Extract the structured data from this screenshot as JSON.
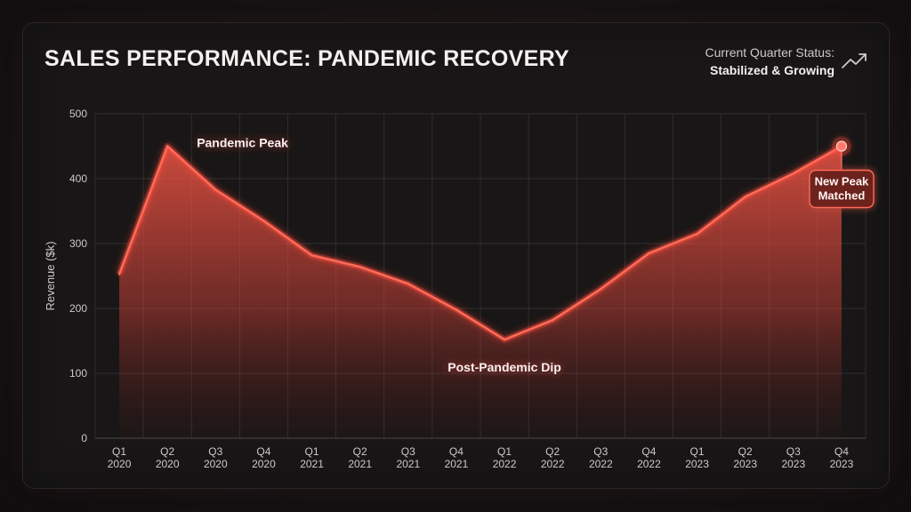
{
  "header": {
    "title": "SALES PERFORMANCE: PANDEMIC RECOVERY",
    "status_label": "Current Quarter Status:",
    "status_value": "Stabilized & Growing",
    "status_icon": "trending-up-icon"
  },
  "colors": {
    "accent": "#ff5a4a",
    "line": "#ff6a58",
    "text": "#f4f0ef",
    "muted": "#cfc9c8",
    "grid": "#4a4444"
  },
  "chart_data": {
    "type": "area",
    "title": "SALES PERFORMANCE: PANDEMIC RECOVERY",
    "xlabel": "",
    "ylabel": "Revenue ($k)",
    "ylim": [
      0,
      500
    ],
    "yticks": [
      0,
      100,
      200,
      300,
      400,
      500
    ],
    "grid": true,
    "categories": [
      [
        "Q1",
        "2020"
      ],
      [
        "Q2",
        "2020"
      ],
      [
        "Q3",
        "2020"
      ],
      [
        "Q4",
        "2020"
      ],
      [
        "Q1",
        "2021"
      ],
      [
        "Q2",
        "2021"
      ],
      [
        "Q3",
        "2021"
      ],
      [
        "Q4",
        "2021"
      ],
      [
        "Q1",
        "2022"
      ],
      [
        "Q2",
        "2022"
      ],
      [
        "Q3",
        "2022"
      ],
      [
        "Q4",
        "2022"
      ],
      [
        "Q1",
        "2023"
      ],
      [
        "Q2",
        "2023"
      ],
      [
        "Q3",
        "2023"
      ],
      [
        "Q4",
        "2023"
      ]
    ],
    "series": [
      {
        "name": "Revenue",
        "values": [
          253,
          450,
          383,
          335,
          282,
          264,
          238,
          198,
          152,
          182,
          230,
          285,
          315,
          372,
          408,
          450
        ]
      }
    ],
    "annotations": [
      {
        "text": "Pandemic Peak",
        "index": 1,
        "value": 450,
        "style": "label",
        "placement": "upper-right"
      },
      {
        "text": "Post-Pandemic Dip",
        "index": 8,
        "value": 152,
        "style": "label",
        "placement": "below"
      },
      {
        "text": "New Peak\nMatched",
        "index": 15,
        "value": 450,
        "style": "callout",
        "placement": "below"
      }
    ]
  }
}
